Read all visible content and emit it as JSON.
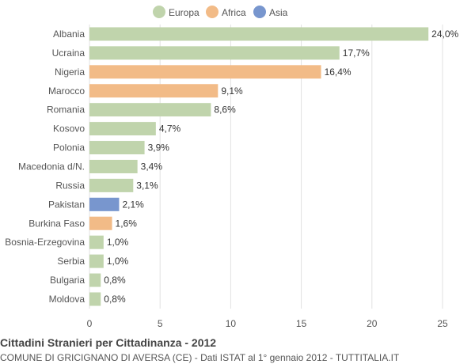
{
  "chart_data": {
    "type": "bar",
    "orientation": "horizontal",
    "categories": [
      "Albania",
      "Ucraina",
      "Nigeria",
      "Marocco",
      "Romania",
      "Kosovo",
      "Polonia",
      "Macedonia d/N.",
      "Russia",
      "Pakistan",
      "Burkina Faso",
      "Bosnia-Erzegovina",
      "Serbia",
      "Bulgaria",
      "Moldova"
    ],
    "values": [
      24.0,
      17.7,
      16.4,
      9.1,
      8.6,
      4.7,
      3.9,
      3.4,
      3.1,
      2.1,
      1.6,
      1.0,
      1.0,
      0.8,
      0.8
    ],
    "value_labels": [
      "24,0%",
      "17,7%",
      "16,4%",
      "9,1%",
      "8,6%",
      "4,7%",
      "3,9%",
      "3,4%",
      "3,1%",
      "2,1%",
      "1,6%",
      "1,0%",
      "1,0%",
      "0,8%",
      "0,8%"
    ],
    "groups": [
      "Europa",
      "Europa",
      "Africa",
      "Africa",
      "Europa",
      "Europa",
      "Europa",
      "Europa",
      "Europa",
      "Asia",
      "Africa",
      "Europa",
      "Europa",
      "Europa",
      "Europa"
    ],
    "legend": [
      {
        "name": "Europa",
        "color": "#c0d4ac"
      },
      {
        "name": "Africa",
        "color": "#f2bb87"
      },
      {
        "name": "Asia",
        "color": "#7896ce"
      }
    ],
    "xlim": [
      0,
      25
    ],
    "xticks": [
      0,
      5,
      10,
      15,
      20,
      25
    ],
    "grid": true,
    "legend_position": "top"
  },
  "footer": {
    "title": "Cittadini Stranieri per Cittadinanza - 2012",
    "subtitle": "COMUNE DI GRICIGNANO DI AVERSA (CE) - Dati ISTAT al 1° gennaio 2012 - TUTTITALIA.IT"
  }
}
